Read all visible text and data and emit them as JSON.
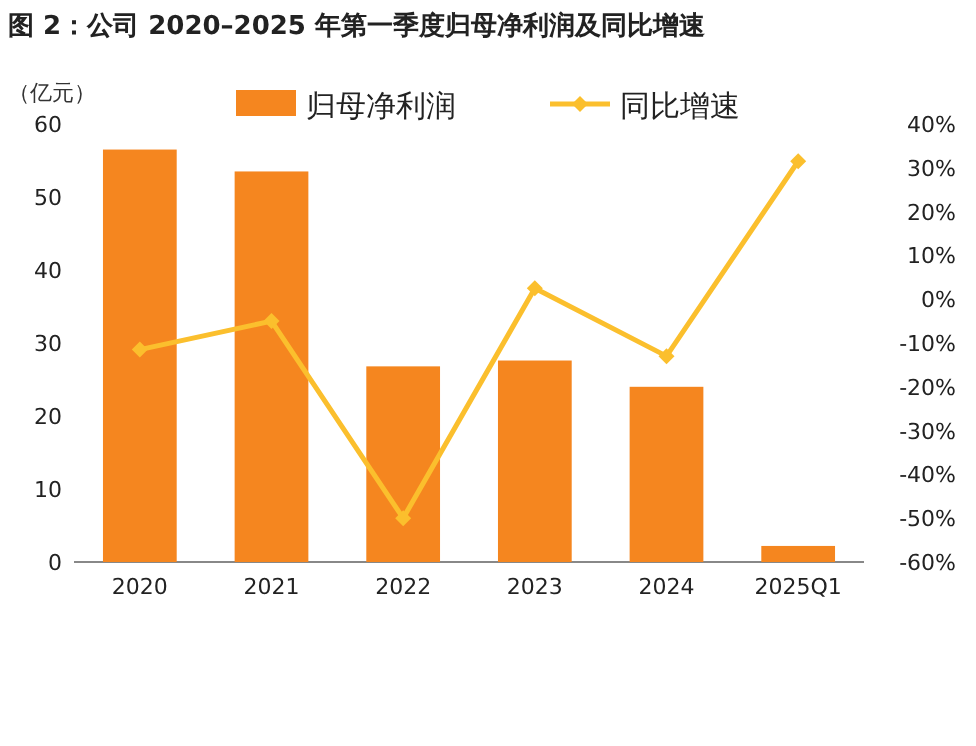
{
  "chart_data": {
    "type": "bar",
    "title": "图 2：公司 2020–2025 年第一季度归母净利润及同比增速",
    "ylabel": "（亿元）",
    "categories": [
      "2020",
      "2021",
      "2022",
      "2023",
      "2024",
      "2025Q1"
    ],
    "series": [
      {
        "name": "归母净利润",
        "color": "#f5861f",
        "values": [
          56.5,
          53.5,
          26.8,
          27.6,
          24.0,
          2.2
        ]
      },
      {
        "name": "同比增速",
        "type": "line",
        "axis": "y2",
        "color": "#fbbf2d",
        "values": [
          -11.5,
          -5,
          -50,
          2.5,
          -13,
          31.5
        ]
      }
    ],
    "ylim": [
      0,
      60
    ],
    "yticks": [
      0,
      10,
      20,
      30,
      40,
      50,
      60
    ],
    "y2lim": [
      -60,
      40
    ],
    "y2ticks": [
      {
        "value": -60,
        "label": "-60%"
      },
      {
        "value": -50,
        "label": "-50%"
      },
      {
        "value": -40,
        "label": "-40%"
      },
      {
        "value": -30,
        "label": "-30%"
      },
      {
        "value": -20,
        "label": "-20%"
      },
      {
        "value": -10,
        "label": "-10%"
      },
      {
        "value": 0,
        "label": "0%"
      },
      {
        "value": 10,
        "label": "10%"
      },
      {
        "value": 20,
        "label": "20%"
      },
      {
        "value": 30,
        "label": "30%"
      },
      {
        "value": 40,
        "label": "40%"
      }
    ],
    "legend": "top",
    "marker": "diamond",
    "grid": false
  }
}
